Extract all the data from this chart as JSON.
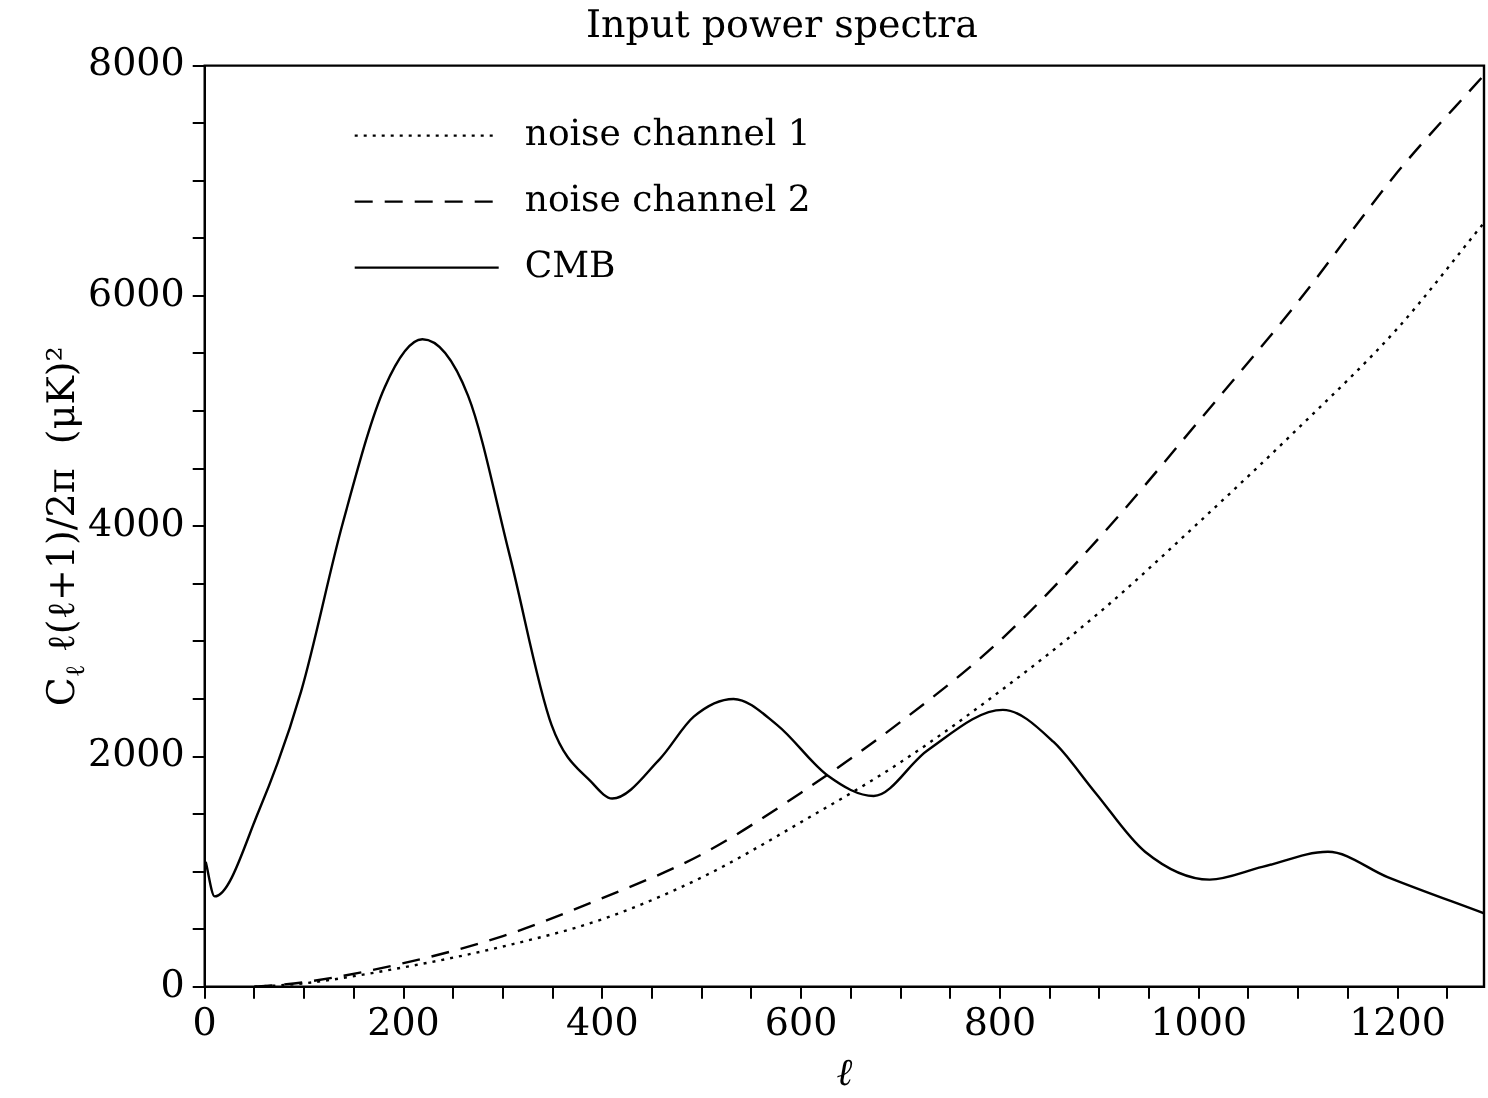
{
  "chart_data": {
    "type": "line",
    "title": "Input power spectra",
    "xlabel": "ℓ",
    "ylabel": "C$_{ℓ}$ ℓ(ℓ+1)/2π  (μK)²",
    "xlim": [
      0,
      1287
    ],
    "ylim": [
      0,
      8000
    ],
    "xticks": [
      0,
      {
        "value": 50,
        "label": null
      },
      {
        "value": 100,
        "label": null
      },
      {
        "value": 150,
        "label": null
      },
      200,
      {
        "value": 250,
        "label": null
      },
      {
        "value": 300,
        "label": null
      },
      {
        "value": 350,
        "label": null
      },
      400,
      {
        "value": 450,
        "label": null
      },
      {
        "value": 500,
        "label": null
      },
      {
        "value": 550,
        "label": null
      },
      600,
      {
        "value": 650,
        "label": null
      },
      {
        "value": 700,
        "label": null
      },
      {
        "value": 750,
        "label": null
      },
      800,
      {
        "value": 850,
        "label": null
      },
      {
        "value": 900,
        "label": null
      },
      {
        "value": 950,
        "label": null
      },
      1000,
      {
        "value": 1050,
        "label": null
      },
      {
        "value": 1100,
        "label": null
      },
      {
        "value": 1150,
        "label": null
      },
      1200,
      {
        "value": 1250,
        "label": null
      }
    ],
    "yticks": [
      0,
      {
        "value": 500,
        "label": null
      },
      {
        "value": 1000,
        "label": null
      },
      {
        "value": 1500,
        "label": null
      },
      2000,
      {
        "value": 2500,
        "label": null
      },
      {
        "value": 3000,
        "label": null
      },
      {
        "value": 3500,
        "label": null
      },
      4000,
      {
        "value": 4500,
        "label": null
      },
      {
        "value": 5000,
        "label": null
      },
      {
        "value": 5500,
        "label": null
      },
      6000,
      {
        "value": 6500,
        "label": null
      },
      {
        "value": 7000,
        "label": null
      },
      {
        "value": 7500,
        "label": null
      },
      8000
    ],
    "grid": false,
    "legend": "top left",
    "marker": "none",
    "series": [
      {
        "name": "noise channel 1",
        "color": "#000000",
        "line_style": "dotted",
        "x": [
          50,
          100,
          200,
          300,
          400,
          500,
          600,
          700,
          800,
          900,
          1000,
          1100,
          1200,
          1287
        ],
        "values": [
          0,
          30,
          169,
          350,
          587,
          950,
          1430,
          1950,
          2566,
          3250,
          4032,
          4850,
          5718,
          6635
        ]
      },
      {
        "name": "noise channel 2",
        "color": "#000000",
        "line_style": "dashed",
        "x": [
          50,
          100,
          200,
          300,
          400,
          500,
          600,
          700,
          800,
          900,
          1000,
          1100,
          1200,
          1287
        ],
        "values": [
          0,
          40,
          205,
          440,
          770,
          1150,
          1686,
          2300,
          3006,
          3900,
          4912,
          5950,
          7075,
          7918
        ]
      },
      {
        "name": "CMB",
        "color": "#000000",
        "line_style": "solid",
        "x": [
          1,
          10,
          55,
          97,
          139,
          181,
          219,
          265,
          307,
          349,
          391,
          410,
          458,
          492,
          532,
          576,
          627,
          673,
          727,
          803,
          854,
          896,
          946,
          1011,
          1064,
          1130,
          1190,
          1287
        ],
        "values": [
          1085,
          785,
          1540,
          2566,
          4030,
          5205,
          5623,
          5132,
          3740,
          2273,
          1760,
          1635,
          1980,
          2346,
          2500,
          2273,
          1833,
          1657,
          2053,
          2405,
          2126,
          1686,
          1173,
          931,
          1041,
          1173,
          953,
          638
        ]
      }
    ]
  }
}
